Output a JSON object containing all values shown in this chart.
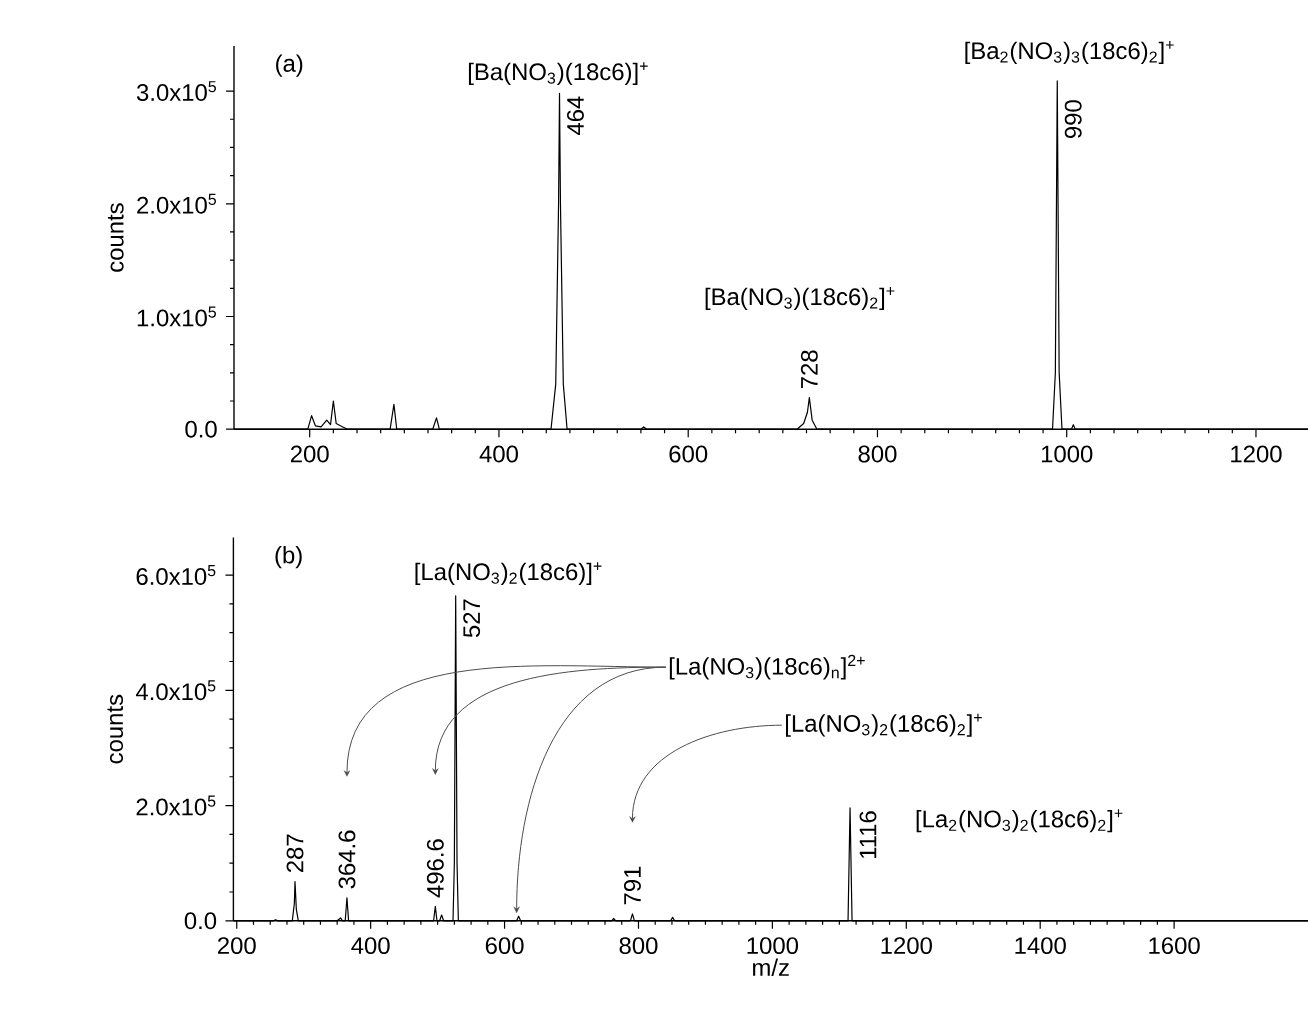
{
  "chart_data": [
    {
      "type": "line",
      "title": "(a)",
      "ylabel": "counts",
      "color": "#000000",
      "x": [
        120,
        198,
        202,
        206,
        212,
        218,
        222,
        225,
        228,
        235,
        240,
        285,
        289,
        292,
        330,
        334,
        337,
        455,
        460,
        463,
        464,
        465,
        468,
        472,
        550,
        553,
        556,
        715,
        722,
        726,
        728,
        731,
        736,
        985,
        988,
        990,
        992,
        995,
        1005,
        1007,
        1009,
        1255
      ],
      "values": [
        0,
        0,
        12000,
        3000,
        2000,
        8000,
        4000,
        25000,
        5000,
        2000,
        0,
        0,
        22000,
        0,
        0,
        10000,
        0,
        0,
        40000,
        200000,
        298000,
        200000,
        40000,
        0,
        0,
        2000,
        0,
        0,
        5000,
        15000,
        28000,
        8000,
        0,
        0,
        50000,
        309000,
        50000,
        0,
        0,
        4000,
        0,
        0
      ],
      "xlim": [
        120,
        1255
      ],
      "xticks": [
        200,
        400,
        600,
        800,
        1000,
        1200
      ],
      "ylim": [
        0,
        340000
      ],
      "yticks": [
        {
          "value": 0,
          "label": "0.0"
        },
        {
          "value": 100000,
          "label": "1.0x10$^{5}$"
        },
        {
          "value": 200000,
          "label": "2.0x10$^{5}$"
        },
        {
          "value": 300000,
          "label": "3.0x10$^{5}$"
        }
      ],
      "annotations": [
        {
          "text": "464",
          "x": 464,
          "y": 298000
        },
        "[Ba(NO$_{3}$)(18c6)]$^{+}$",
        {
          "text": "990",
          "x": 990,
          "y": 309000
        },
        "[Ba$_{2}$(NO$_{3}$)$_{3}$(18c6)$_{2}$]$^{+}$",
        {
          "text": "728",
          "x": 728,
          "y": 28000
        },
        "[Ba(NO$_{3}$)(18c6)$_{2}$]$^{+}$"
      ]
    },
    {
      "type": "line",
      "title": "(b)",
      "xlabel": "m/z",
      "ylabel": "counts",
      "color": "#000000",
      "x": [
        195,
        255,
        258,
        261,
        283,
        286,
        287,
        289,
        292,
        350,
        355,
        358,
        362,
        364.6,
        367,
        494,
        496.6,
        499,
        503,
        506,
        509,
        523,
        525,
        527,
        529,
        531,
        618,
        621,
        624,
        760,
        763,
        766,
        788,
        791,
        794,
        848,
        851,
        854,
        1113,
        1116,
        1119,
        1800
      ],
      "values": [
        0,
        0,
        2000,
        0,
        0,
        30000,
        68000,
        20000,
        0,
        0,
        5000,
        0,
        0,
        40000,
        0,
        0,
        25000,
        0,
        0,
        10000,
        0,
        0,
        100000,
        564000,
        100000,
        0,
        0,
        8000,
        0,
        0,
        4000,
        0,
        0,
        12000,
        0,
        0,
        6000,
        0,
        0,
        196000,
        0,
        0
      ],
      "xlim": [
        195,
        1800
      ],
      "xticks": [
        200,
        400,
        600,
        800,
        1000,
        1200,
        1400,
        1600
      ],
      "ylim": [
        0,
        665000
      ],
      "yticks": [
        {
          "value": 0,
          "label": "0.0"
        },
        {
          "value": 200000,
          "label": "2.0x10$^{5}$"
        },
        {
          "value": 400000,
          "label": "4.0x10$^{5}$"
        },
        {
          "value": 600000,
          "label": "6.0x10$^{5}$"
        }
      ],
      "annotations": [
        {
          "text": "527",
          "x": 527,
          "y": 564000
        },
        "[La(NO$_{3}$)$_{2}$(18c6)]$^{+}$",
        {
          "text": "287",
          "x": 287,
          "y": 68000
        },
        {
          "text": "364.6",
          "x": 364.6,
          "y": 40000
        },
        {
          "text": "496.6",
          "x": 496.6,
          "y": 25000
        },
        {
          "text": "791",
          "x": 791,
          "y": 12000
        },
        {
          "text": "1116",
          "x": 1116,
          "y": 196000
        },
        "[La$_{2}$(NO$_{3}$)$_{2}$(18c6)$_{2}$]$^{+}$",
        {
          "text": "[La(NO$_{3}$)$_{2}$(18c6)$_{2}$]$^{+}$",
          "x": 791,
          "y": 170000
        },
        {
          "text": "[La(NO$_{3}$)(18c6)$_{n}$]$^{2+}$",
          "x": 364.6,
          "y": 250000
        }
      ]
    }
  ]
}
